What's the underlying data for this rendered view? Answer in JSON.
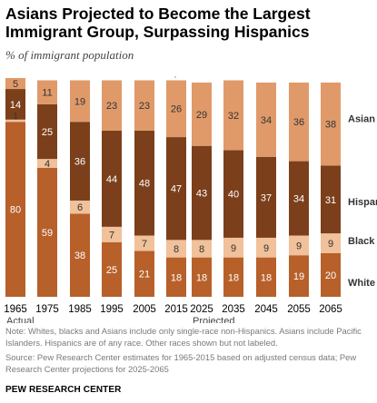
{
  "title": "Asians Projected to Become the Largest Immigrant Group, Surpassing Hispanics",
  "subtitle": "% of immigrant population",
  "note": "Note: Whites, blacks and Asians include only single-race non-Hispanics. Asians include Pacific Islanders. Hispanics are of any race. Other races shown but not labeled.",
  "source": "Source: Pew Research Center estimates for 1965-2015 based on adjusted census data; Pew Research Center projections for 2025-2065",
  "brand": "PEW RESEARCH CENTER",
  "colors": {
    "white": "#b7602a",
    "black": "#f0c19a",
    "hispanic": "#7c3f1b",
    "asian": "#e09a69",
    "other": "#ffffff",
    "separator": "#9a9a9a"
  },
  "chart_data": {
    "type": "bar",
    "stacked": true,
    "ylim": [
      0,
      100
    ],
    "categories": [
      "1965",
      "1975",
      "1985",
      "1995",
      "2005",
      "2015",
      "2025",
      "2035",
      "2045",
      "2055",
      "2065"
    ],
    "panels": [
      {
        "label": "Actual",
        "categories": [
          "1965",
          "1975",
          "1985",
          "1995",
          "2005",
          "2015"
        ]
      },
      {
        "label": "Projected",
        "categories": [
          "2025",
          "2035",
          "2045",
          "2055",
          "2065"
        ]
      }
    ],
    "series": [
      {
        "name": "White",
        "key": "white",
        "values": [
          80,
          59,
          38,
          25,
          21,
          18,
          18,
          18,
          18,
          19,
          20
        ]
      },
      {
        "name": "Black",
        "key": "black",
        "values": [
          1,
          4,
          6,
          7,
          7,
          8,
          8,
          9,
          9,
          9,
          9
        ]
      },
      {
        "name": "Hispanic",
        "key": "hispanic",
        "values": [
          14,
          25,
          36,
          44,
          48,
          47,
          43,
          40,
          37,
          34,
          31
        ]
      },
      {
        "name": "Asian",
        "key": "asian",
        "values": [
          5,
          11,
          19,
          23,
          23,
          26,
          29,
          32,
          34,
          36,
          38
        ]
      }
    ],
    "legend": "right-inline"
  }
}
